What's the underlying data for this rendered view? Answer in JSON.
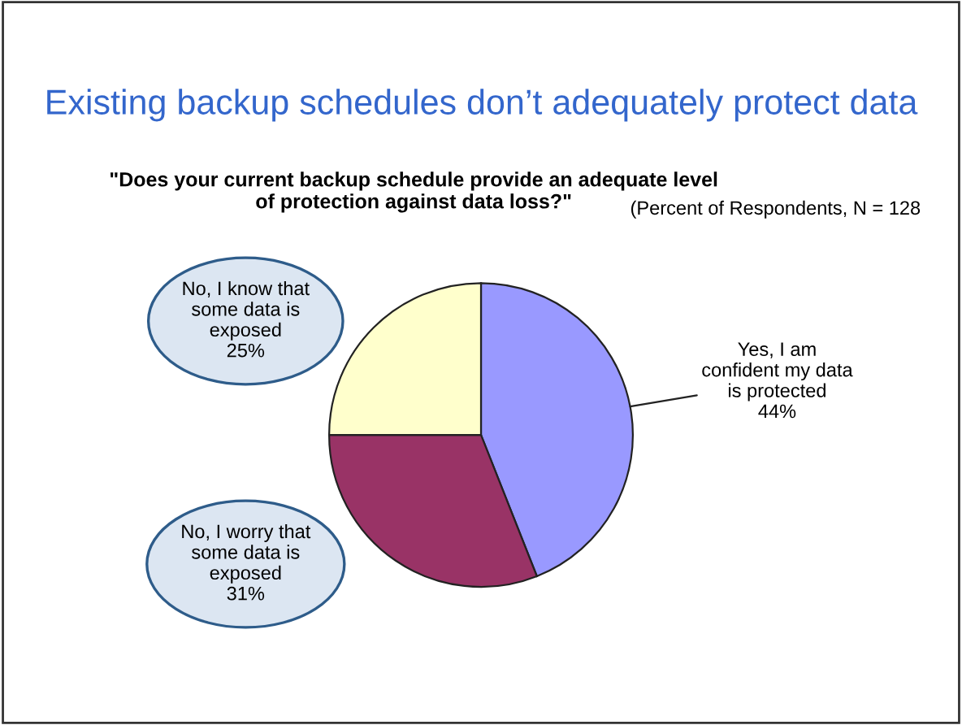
{
  "chart_data": {
    "type": "pie",
    "title": "Existing backup schedules don’t adequately protect data",
    "subtitle": "\"Does your current backup schedule provide an adequate level\nof protection against data loss?\"",
    "annotations": [
      "(Percent of Respondents, N = 128"
    ],
    "categories": [
      "Yes, I am\nconfident my data\nis protected",
      "No, I worry that\nsome data is\nexposed",
      "No, I know that\nsome data is\nexposed"
    ],
    "values": [
      44,
      31,
      25
    ],
    "value_labels": [
      "44%",
      "31%",
      "25%"
    ],
    "colors": [
      "#9999ff",
      "#993366",
      "#ffffcc"
    ]
  }
}
